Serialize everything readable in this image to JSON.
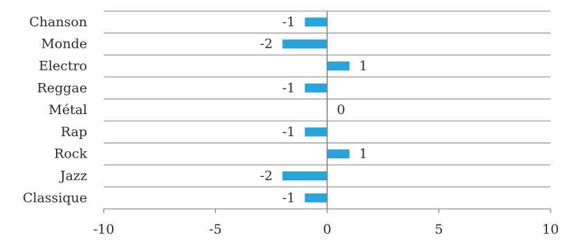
{
  "chart_data": {
    "type": "bar",
    "orientation": "horizontal",
    "categories": [
      "Chanson",
      "Monde",
      "Electro",
      "Reggae",
      "Métal",
      "Rap",
      "Rock",
      "Jazz",
      "Classique"
    ],
    "values": [
      -1,
      -2,
      1,
      -1,
      0,
      -1,
      1,
      -2,
      -1
    ],
    "data_labels": [
      "-1",
      "-2",
      "1",
      "-1",
      "0",
      "-1",
      "1",
      "-2",
      "-1"
    ],
    "xlim": [
      -10,
      10
    ],
    "x_ticks": [
      -10,
      -5,
      0,
      5,
      10
    ],
    "x_tick_labels": [
      "-10",
      "-5",
      "0",
      "5",
      "10"
    ],
    "grid": true,
    "legend": "none",
    "colors": {
      "bar": "#29a3dc",
      "grid": "#9a9a9a",
      "axis": "#7f7f7f",
      "text": "#2b2b2b"
    }
  }
}
